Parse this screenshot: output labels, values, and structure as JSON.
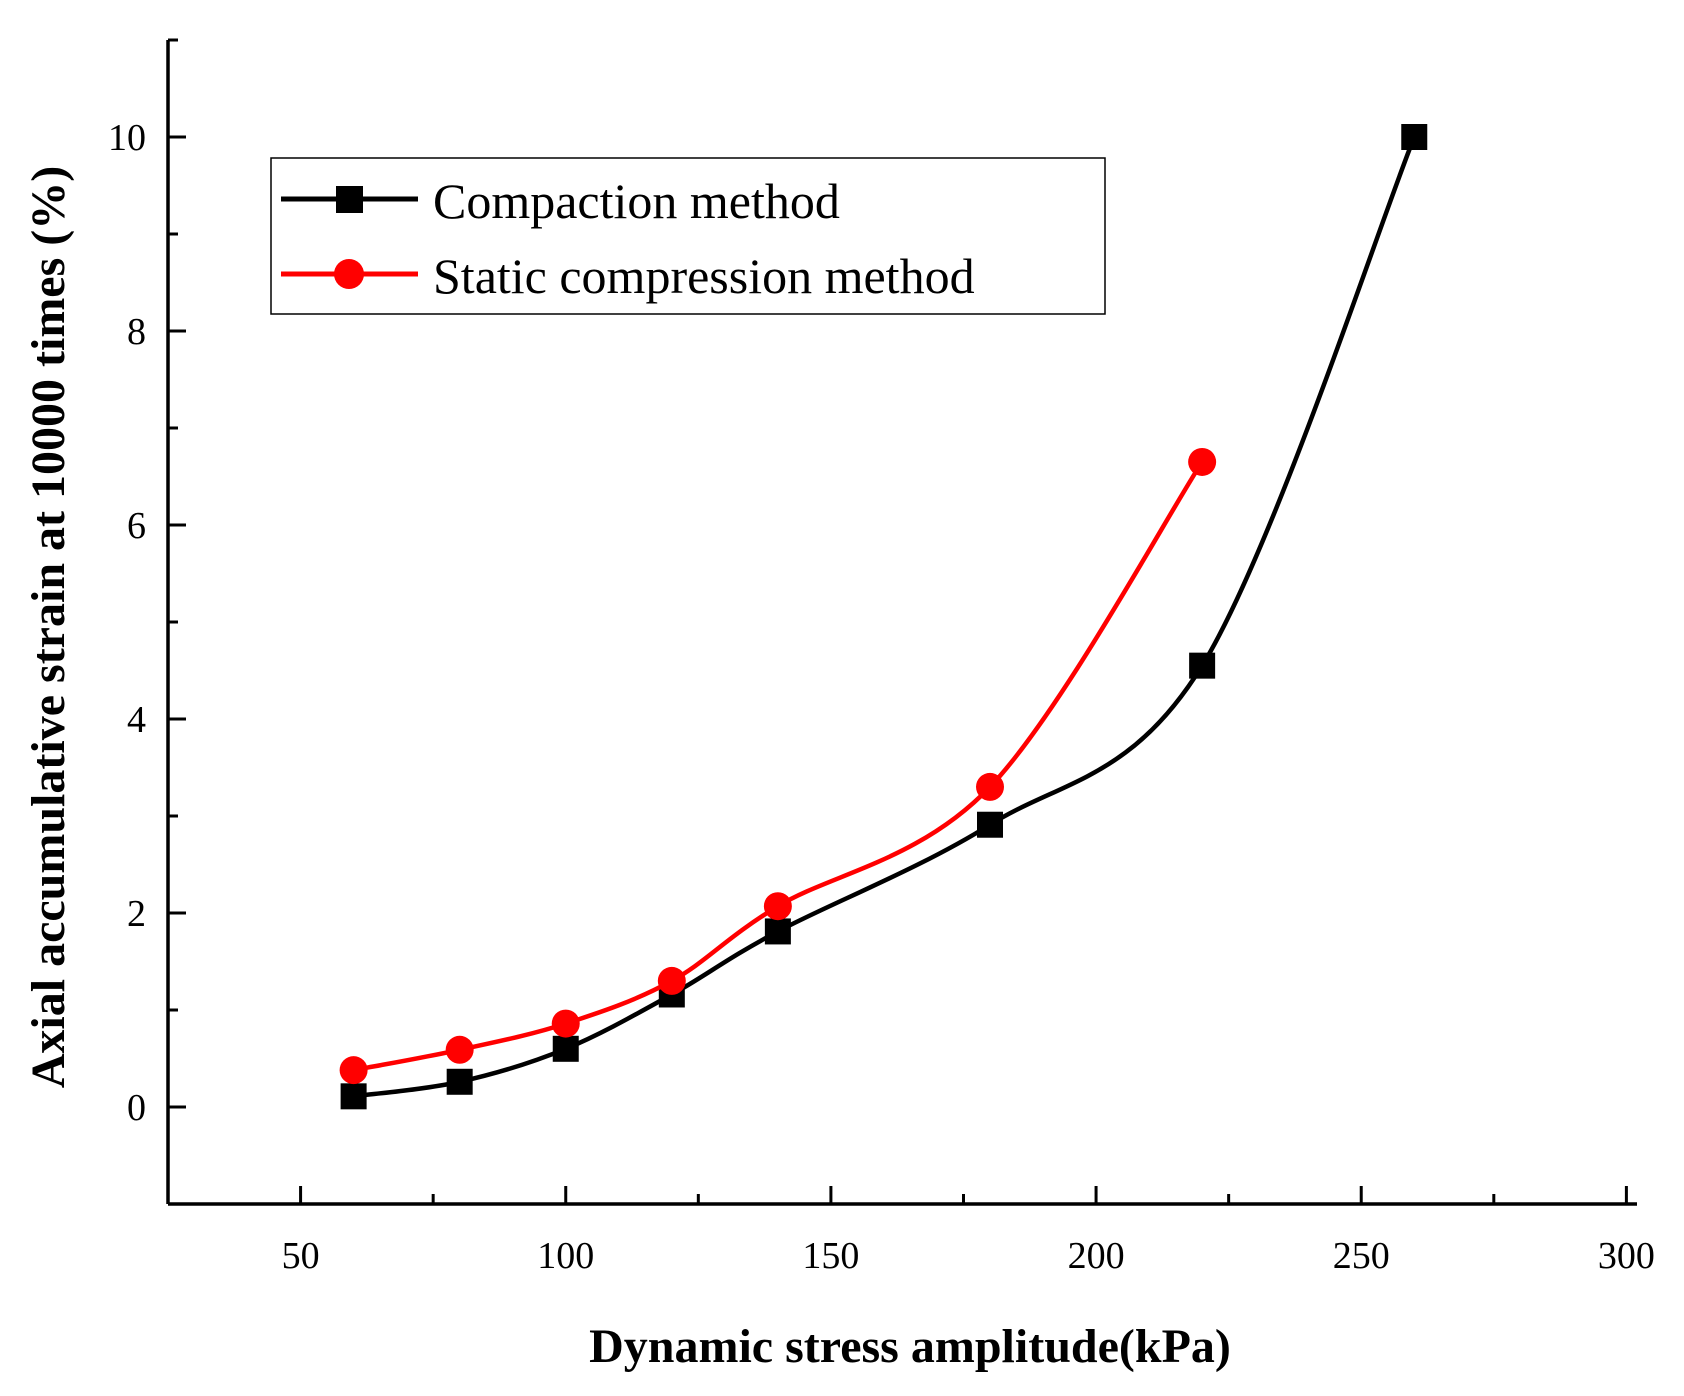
{
  "chart_data": {
    "type": "line",
    "title": "",
    "xlabel": "Dynamic stress amplitude(kPa)",
    "ylabel": "Axial accumulative strain  at 10000 times (%)",
    "xlim": [
      25,
      302
    ],
    "ylim": [
      -1,
      11
    ],
    "xticks": [
      50,
      100,
      150,
      200,
      250,
      300
    ],
    "xtick_labels": [
      "50",
      "100",
      "150",
      "200",
      "250",
      "300"
    ],
    "yticks": [
      0,
      2,
      4,
      6,
      8,
      10
    ],
    "ytick_labels": [
      "0",
      "2",
      "4",
      "6",
      "8",
      "10"
    ],
    "legend_position": "top-left",
    "series": [
      {
        "name": "Compaction method",
        "color": "#000000",
        "marker": "square",
        "x": [
          60,
          80,
          100,
          120,
          140,
          180,
          220,
          260
        ],
        "y": [
          0.11,
          0.26,
          0.6,
          1.16,
          1.81,
          2.91,
          4.55,
          10.0
        ]
      },
      {
        "name": "Static compression method",
        "color": "#ff0000",
        "marker": "circle",
        "x": [
          60,
          80,
          100,
          120,
          140,
          180,
          220
        ],
        "y": [
          0.38,
          0.59,
          0.86,
          1.3,
          2.07,
          3.3,
          6.65
        ]
      }
    ]
  }
}
